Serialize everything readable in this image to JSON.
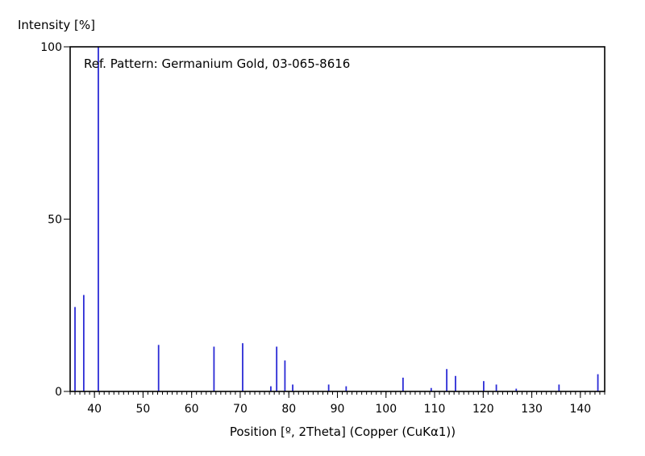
{
  "chart_data": {
    "type": "bar",
    "title": "Ref. Pattern: Germanium Gold, 03-065-8616",
    "xlabel": "Position [º, 2Theta] (Copper (CuKα1))",
    "ylabel": "Intensity [%]",
    "xlim": [
      35,
      145
    ],
    "ylim": [
      0,
      100
    ],
    "x_ticks": [
      40,
      50,
      60,
      70,
      80,
      90,
      100,
      110,
      120,
      130,
      140
    ],
    "y_ticks": [
      0,
      50,
      100
    ],
    "grid": false,
    "bar_color": "#2b2bd6",
    "x": [
      36.0,
      37.8,
      40.8,
      53.2,
      64.6,
      70.5,
      76.3,
      77.5,
      79.2,
      80.8,
      88.2,
      91.8,
      103.5,
      109.3,
      112.5,
      114.3,
      120.1,
      122.7,
      126.8,
      135.6,
      143.6
    ],
    "values": [
      24.5,
      28.0,
      100.0,
      13.5,
      13.0,
      14.0,
      1.5,
      13.0,
      9.0,
      2.0,
      2.0,
      1.5,
      4.0,
      1.0,
      6.5,
      4.5,
      3.0,
      2.0,
      0.8,
      2.0,
      5.0
    ]
  }
}
